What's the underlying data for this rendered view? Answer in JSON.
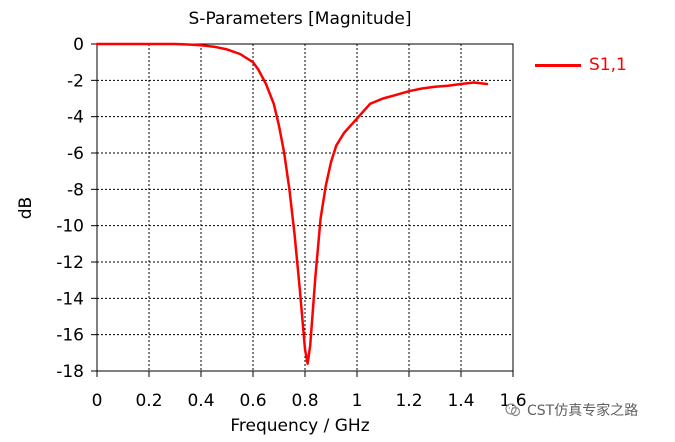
{
  "chart_data": {
    "type": "line",
    "title": "S-Parameters [Magnitude]",
    "xlabel": "Frequency / GHz",
    "ylabel": "dB",
    "xlim": [
      0,
      1.6
    ],
    "ylim": [
      -18,
      0
    ],
    "xticks": [
      "0",
      "0.2",
      "0.4",
      "0.6",
      "0.8",
      "1",
      "1.2",
      "1.4",
      "1.6"
    ],
    "yticks": [
      "0",
      "-2",
      "-4",
      "-6",
      "-8",
      "-10",
      "-12",
      "-14",
      "-16",
      "-18"
    ],
    "grid": true,
    "legend_position": "right",
    "series": [
      {
        "name": "S1,1",
        "color": "#ff0000",
        "x": [
          0,
          0.1,
          0.2,
          0.3,
          0.35,
          0.4,
          0.45,
          0.5,
          0.55,
          0.6,
          0.62,
          0.65,
          0.68,
          0.7,
          0.72,
          0.74,
          0.76,
          0.78,
          0.8,
          0.81,
          0.82,
          0.84,
          0.86,
          0.88,
          0.9,
          0.92,
          0.95,
          1.0,
          1.05,
          1.1,
          1.15,
          1.2,
          1.25,
          1.3,
          1.35,
          1.4,
          1.45,
          1.5
        ],
        "y": [
          0,
          0,
          0,
          0,
          -0.03,
          -0.07,
          -0.15,
          -0.3,
          -0.55,
          -1.0,
          -1.4,
          -2.2,
          -3.3,
          -4.5,
          -6.0,
          -8.0,
          -10.5,
          -13.5,
          -16.8,
          -17.6,
          -16.6,
          -12.8,
          -9.6,
          -7.8,
          -6.5,
          -5.6,
          -4.9,
          -4.1,
          -3.3,
          -3.0,
          -2.8,
          -2.6,
          -2.45,
          -2.35,
          -2.3,
          -2.2,
          -2.12,
          -2.2
        ]
      }
    ]
  },
  "watermark": {
    "text": "CST仿真专家之路",
    "icon": "wechat-icon"
  }
}
